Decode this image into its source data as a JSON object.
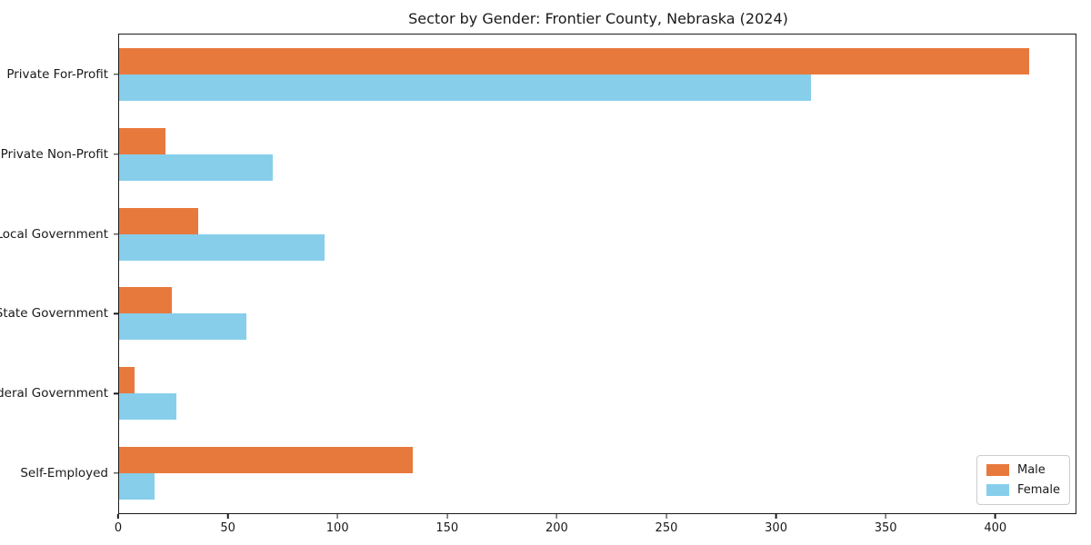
{
  "title": "Sector by Gender: Frontier County, Nebraska (2024)",
  "chart_data": {
    "type": "bar",
    "orientation": "horizontal",
    "title": "Sector by Gender: Frontier County, Nebraska (2024)",
    "xlabel": "",
    "ylabel": "",
    "categories": [
      "Private For-Profit",
      "Private Non-Profit",
      "Local Government",
      "State Government",
      "Federal Government",
      "Self-Employed"
    ],
    "series": [
      {
        "name": "Male",
        "color": "#E8793D",
        "values": [
          416,
          21,
          36,
          24,
          7,
          134
        ]
      },
      {
        "name": "Female",
        "color": "#87CEEB",
        "values": [
          316,
          70,
          94,
          58,
          26,
          16
        ]
      }
    ],
    "xlim": [
      0,
      437
    ],
    "x_ticks": [
      0,
      50,
      100,
      150,
      200,
      250,
      300,
      350,
      400
    ],
    "grid": false,
    "legend_position": "lower right"
  }
}
